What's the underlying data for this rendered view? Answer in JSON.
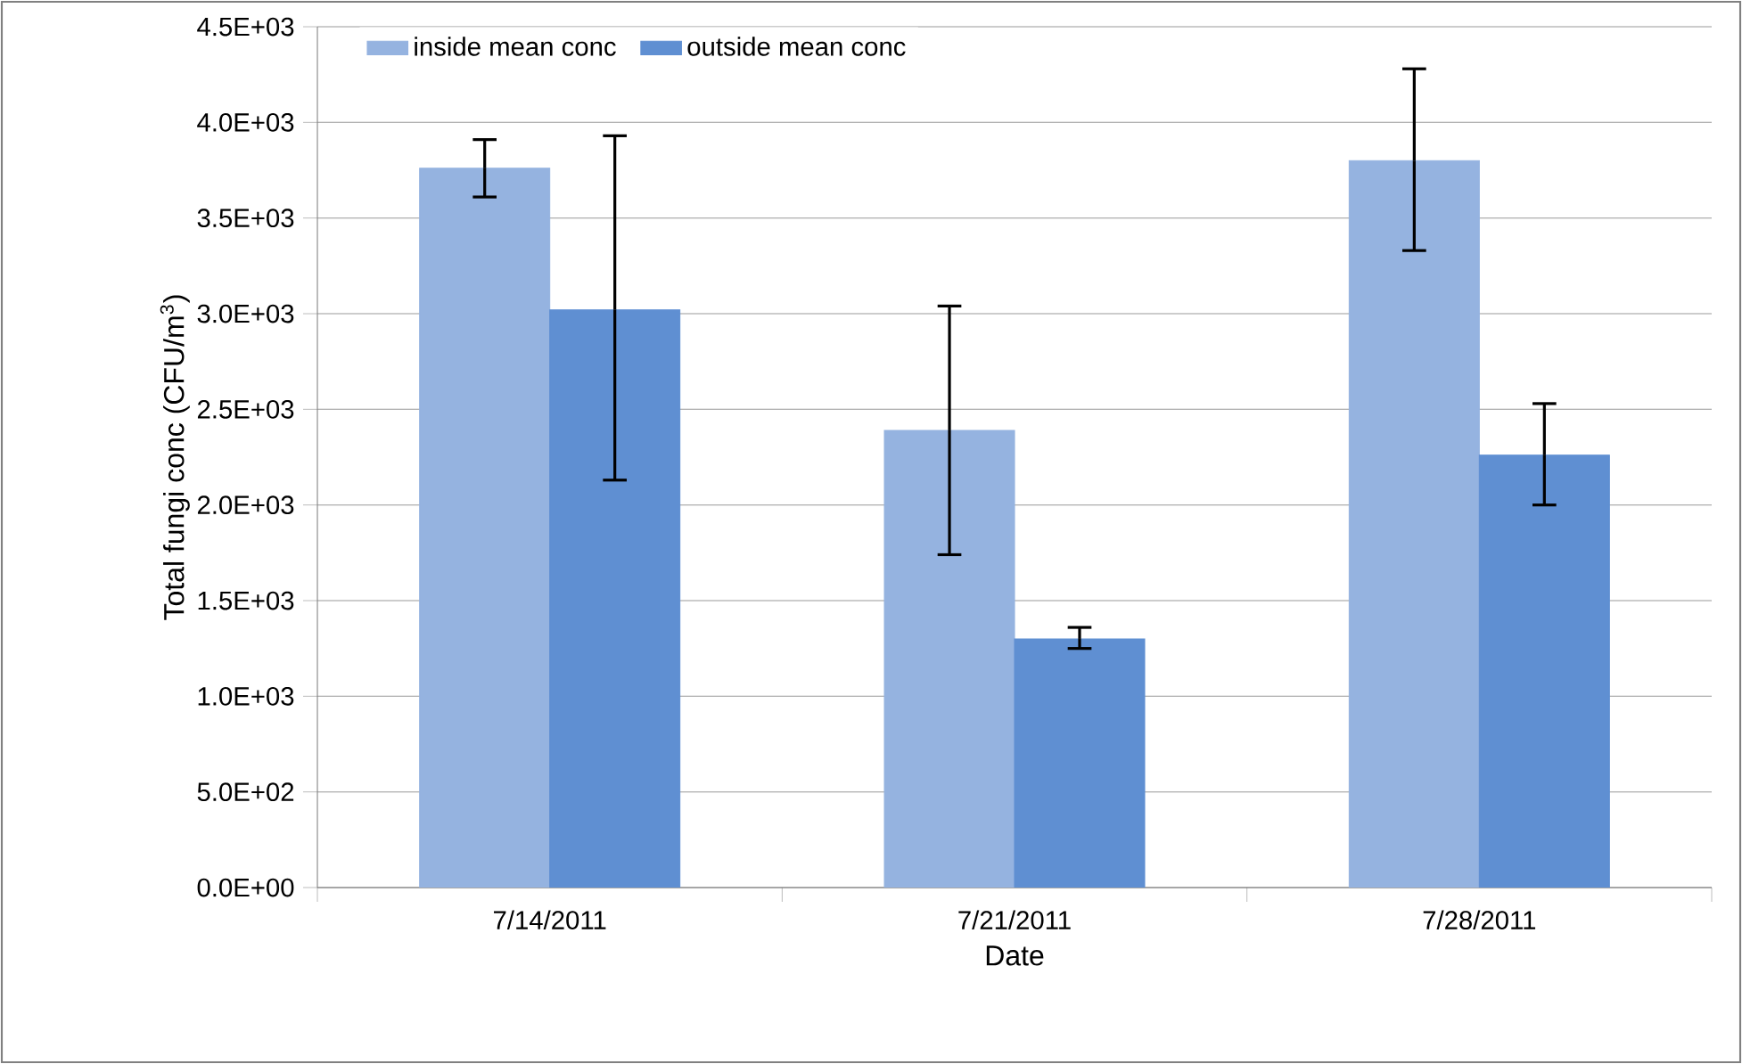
{
  "chart_data": {
    "type": "bar",
    "xlabel": "Date",
    "ylabel": "Total fungi conc (CFU/m$^{3}$)",
    "categories": [
      "7/14/2011",
      "7/21/2011",
      "7/28/2011"
    ],
    "series": [
      {
        "name": "inside mean conc",
        "color": "#95b3e0",
        "values": [
          3760,
          2390,
          3800
        ],
        "errors": [
          [
            3610,
            3910
          ],
          [
            1740,
            3040
          ],
          [
            3330,
            4280
          ]
        ]
      },
      {
        "name": "outside mean conc",
        "color": "#5f8fd2",
        "values": [
          3020,
          1300,
          2260
        ],
        "errors": [
          [
            2130,
            3930
          ],
          [
            1250,
            1360
          ],
          [
            2000,
            2530
          ]
        ]
      }
    ],
    "ylim": [
      0,
      4500
    ],
    "yticks": [
      {
        "value": 0,
        "label": "0.0E+00"
      },
      {
        "value": 500,
        "label": "5.0E+02"
      },
      {
        "value": 1000,
        "label": "1.0E+03"
      },
      {
        "value": 1500,
        "label": "1.5E+03"
      },
      {
        "value": 2000,
        "label": "2.0E+03"
      },
      {
        "value": 2500,
        "label": "2.5E+03"
      },
      {
        "value": 3000,
        "label": "3.0E+03"
      },
      {
        "value": 3500,
        "label": "3.5E+03"
      },
      {
        "value": 4000,
        "label": "4.0E+03"
      },
      {
        "value": 4500,
        "label": "4.5E+03"
      }
    ],
    "grid": "y",
    "legend": "top left"
  }
}
